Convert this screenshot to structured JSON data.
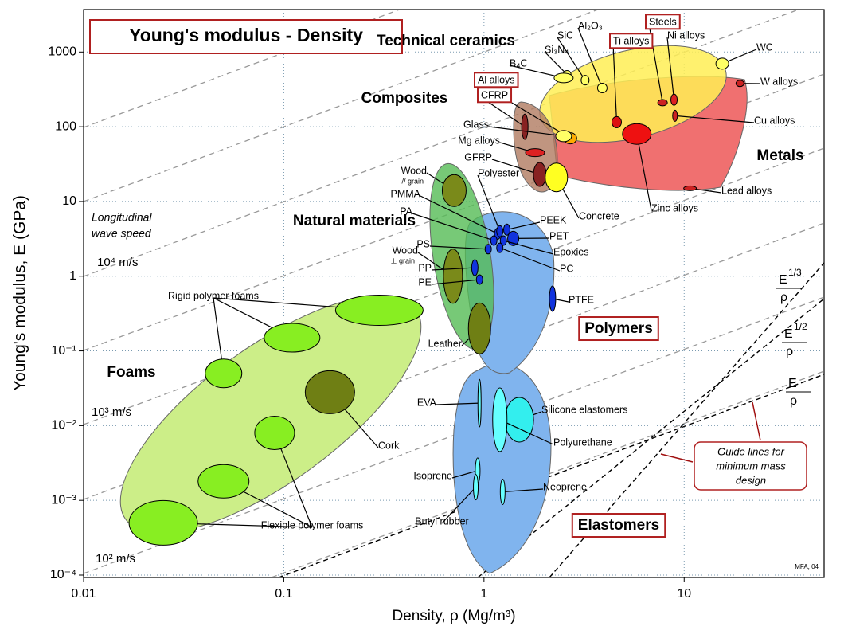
{
  "chart_data": {
    "type": "scatter",
    "title": "Young's modulus - Density",
    "x_label": "Density, ρ  (Mg/m³)",
    "y_label": "Young's modulus, E (GPa)",
    "xscale": "log",
    "yscale": "log",
    "xlim": [
      0.01,
      50
    ],
    "ylim": [
      0.0001,
      3700
    ],
    "xticks": [
      0.01,
      0.1,
      1,
      10
    ],
    "yticks": [
      {
        "value": 0.0001,
        "label": "10⁻⁴"
      },
      {
        "value": 0.001,
        "label": "10⁻³"
      },
      {
        "value": 0.01,
        "label": "10⁻²"
      },
      {
        "value": 0.1,
        "label": "10⁻¹"
      },
      1,
      10,
      100,
      1000
    ],
    "grid": true,
    "materials": [
      {
        "name": "WC",
        "x": 15.5,
        "y": 700,
        "color": "#ffff66"
      },
      {
        "name": "W alloys",
        "x": 19,
        "y": 380,
        "color": "#cc2222"
      },
      {
        "name": "Cu alloys",
        "x": 9,
        "y": 140,
        "color": "#cc2222"
      },
      {
        "name": "Steels",
        "x": 7.8,
        "y": 210,
        "color": "#cc2222"
      },
      {
        "name": "Ni alloys",
        "x": 8.9,
        "y": 230,
        "color": "#dd2222"
      },
      {
        "name": "Ti alloys",
        "x": 4.6,
        "y": 115,
        "color": "#dd1111"
      },
      {
        "name": "Zinc alloys",
        "x": 5.8,
        "y": 80,
        "color": "#ee1111"
      },
      {
        "name": "Lead alloys",
        "x": 10.7,
        "y": 15,
        "color": "#cc2222"
      },
      {
        "name": "Al₂O₃",
        "x": 3.9,
        "y": 330,
        "color": "#ffff66"
      },
      {
        "name": "SiC",
        "x": 3.2,
        "y": 420,
        "color": "#ffff66"
      },
      {
        "name": "Si₃N₄",
        "x": 2.6,
        "y": 500,
        "color": "#ffff66"
      },
      {
        "name": "B₄C",
        "x": 2.5,
        "y": 450,
        "color": "#ffff66"
      },
      {
        "name": "Al alloys",
        "x": 2.7,
        "y": 70,
        "color": "#ffaa00"
      },
      {
        "name": "CFRP",
        "x": 1.6,
        "y": 100,
        "color": "#882222"
      },
      {
        "name": "Glass",
        "x": 2.5,
        "y": 75,
        "color": "#ffff66"
      },
      {
        "name": "Mg alloys",
        "x": 1.8,
        "y": 45,
        "color": "#dd2222"
      },
      {
        "name": "GFRP",
        "x": 1.9,
        "y": 23,
        "color": "#882222"
      },
      {
        "name": "Concrete",
        "x": 2.3,
        "y": 21,
        "color": "#ffff22"
      },
      {
        "name": "Wood",
        "note": "// grain",
        "x": 0.71,
        "y": 14,
        "color": "#7a8a1a"
      },
      {
        "name": "PMMA",
        "x": 1.17,
        "y": 3.7,
        "color": "#1133dd"
      },
      {
        "name": "Polyester",
        "x": 1.2,
        "y": 4,
        "color": "#1133dd"
      },
      {
        "name": "PA",
        "x": 1.12,
        "y": 3,
        "color": "#1133dd"
      },
      {
        "name": "PEEK",
        "x": 1.3,
        "y": 4.2,
        "color": "#1133dd"
      },
      {
        "name": "PET",
        "x": 1.4,
        "y": 3.2,
        "color": "#1133dd"
      },
      {
        "name": "Epoxies",
        "x": 1.25,
        "y": 3,
        "color": "#1133dd"
      },
      {
        "name": "PS",
        "x": 1.05,
        "y": 2.3,
        "color": "#1133dd"
      },
      {
        "name": "PC",
        "x": 1.2,
        "y": 2.4,
        "color": "#1133dd"
      },
      {
        "name": "Wood",
        "note": "⊥ grain",
        "x": 0.7,
        "y": 1,
        "color": "#7a8a1a"
      },
      {
        "name": "PP",
        "x": 0.9,
        "y": 1.3,
        "color": "#1133dd"
      },
      {
        "name": "PE",
        "x": 0.95,
        "y": 0.9,
        "color": "#1133dd"
      },
      {
        "name": "PTFE",
        "x": 2.2,
        "y": 0.5,
        "color": "#1133dd"
      },
      {
        "name": "Leather",
        "x": 0.95,
        "y": 0.2,
        "color": "#6f7f14"
      },
      {
        "name": "Rigid polymer foams",
        "x": [
          0.3,
          0.11,
          0.05
        ],
        "y": [
          0.35,
          0.15,
          0.05
        ],
        "color": "#88ee22"
      },
      {
        "name": "Cork",
        "x": 0.17,
        "y": 0.028,
        "color": "#6f7f14"
      },
      {
        "name": "Flexible polymer foams",
        "x": [
          0.09,
          0.05,
          0.025
        ],
        "y": [
          0.008,
          0.0018,
          0.0005
        ],
        "color": "#88ee22"
      },
      {
        "name": "Silicone elastomers",
        "x": 1.5,
        "y": 0.012,
        "color": "#33eeee"
      },
      {
        "name": "Polyurethane",
        "x": 1.2,
        "y": 0.012,
        "color": "#66ffff"
      },
      {
        "name": "EVA",
        "x": 0.95,
        "y": 0.02,
        "color": "#66ffff"
      },
      {
        "name": "Isoprene",
        "x": 0.93,
        "y": 0.0025,
        "color": "#66ffff"
      },
      {
        "name": "Butyl rubber",
        "x": 0.91,
        "y": 0.0015,
        "color": "#66ffff"
      },
      {
        "name": "Neoprene",
        "x": 1.24,
        "y": 0.0013,
        "color": "#66ffff"
      }
    ],
    "families": [
      "Technical ceramics",
      "Composites",
      "Metals",
      "Natural materials",
      "Polymers",
      "Foams",
      "Elastomers"
    ],
    "wave_speed": [
      "Longitudinal",
      "wave speed"
    ],
    "speeds": [
      "10⁴ m/s",
      "10³ m/s",
      "10² m/s"
    ],
    "indices": [
      {
        "num": "E",
        "exp": "1/3",
        "den": "ρ"
      },
      {
        "num": "E",
        "exp": "1/2",
        "den": "ρ"
      },
      {
        "num": "E",
        "den": "ρ"
      }
    ],
    "guide_note": [
      "Guide lines for",
      "minimum mass",
      "design"
    ],
    "credit": "MFA, 04"
  }
}
